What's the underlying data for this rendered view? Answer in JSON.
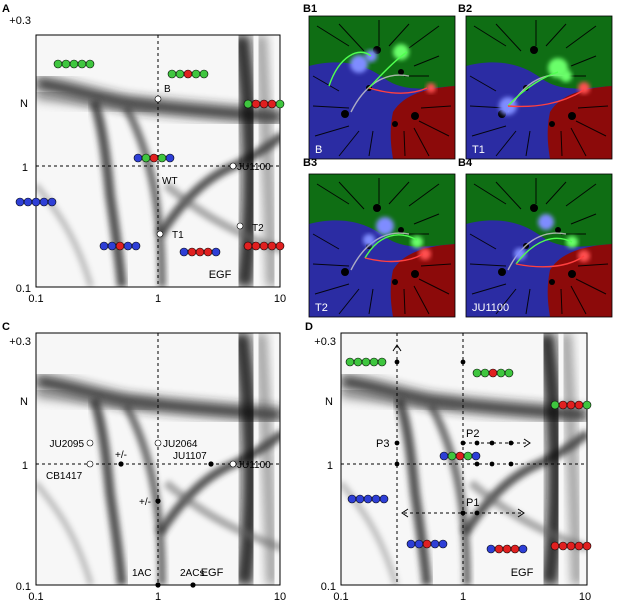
{
  "panels": {
    "A": {
      "letter": "A",
      "y_ticks": [
        "+0.3",
        "N",
        "1",
        "0.1"
      ],
      "x_ticks": [
        "0.1",
        "1",
        "EGF",
        "10"
      ],
      "points": [
        {
          "label": "B"
        },
        {
          "label": "WT"
        },
        {
          "label": "JU1100"
        },
        {
          "label": "T1"
        },
        {
          "label": "T2"
        }
      ]
    },
    "B": {
      "letters": [
        "B1",
        "B2",
        "B3",
        "B4"
      ],
      "corner_labels": [
        "B",
        "T1",
        "T2",
        "JU1100"
      ]
    },
    "C": {
      "letter": "C",
      "y_ticks": [
        "+0.3",
        "N",
        "1",
        "0.1"
      ],
      "x_ticks": [
        "0.1",
        "1",
        "EGF",
        "10"
      ],
      "labels": [
        "JU2095",
        "CB1417",
        "+/-",
        "JU2064",
        "JU1107",
        "JU1100",
        "+/-",
        "1AC",
        "2ACs"
      ]
    },
    "D": {
      "letter": "D",
      "y_ticks": [
        "+0.3",
        "N",
        "1",
        "0.1"
      ],
      "x_ticks": [
        "0.1",
        "1",
        "EGF",
        "10"
      ],
      "labels": [
        "P3",
        "P2",
        "P1"
      ]
    }
  },
  "colors": {
    "green": "#3fc63f",
    "red": "#e02020",
    "blue": "#2e3fd6",
    "field_green": "#0f6e14",
    "field_blue": "#2b2ca3",
    "field_red": "#8c0a0a"
  }
}
